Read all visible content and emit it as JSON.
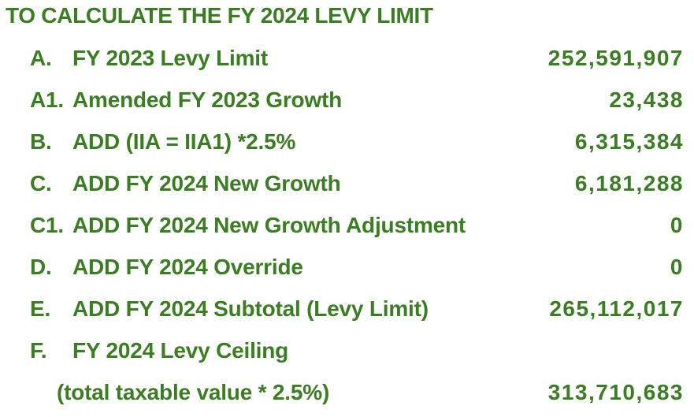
{
  "page": {
    "title": "TO CALCULATE THE FY 2024 LEVY LIMIT",
    "text_color": "#3B7D23",
    "background_color": "#FFFFFF"
  },
  "table": {
    "rows": [
      {
        "prefix": "A.",
        "label": "FY 2023 Levy Limit",
        "value": "252,591,907"
      },
      {
        "prefix": "A1.",
        "label": "Amended FY 2023 Growth",
        "value": "23,438"
      },
      {
        "prefix": "B.",
        "label": "ADD (IIA = IIA1) *2.5%",
        "value": "6,315,384"
      },
      {
        "prefix": "C.",
        "label": "ADD FY 2024 New Growth",
        "value": "6,181,288"
      },
      {
        "prefix": "C1.",
        "label": "ADD FY 2024 New Growth Adjustment",
        "value": "0"
      },
      {
        "prefix": "D.",
        "label": "ADD FY 2024 Override",
        "value": "0"
      },
      {
        "prefix": "E.",
        "label": "ADD FY 2024 Subtotal (Levy Limit)",
        "value": "265,112,017"
      },
      {
        "prefix": "F.",
        "label": "FY 2024 Levy Ceiling",
        "value": ""
      },
      {
        "prefix": "",
        "label": "(total taxable value * 2.5%)",
        "value": "313,710,683"
      }
    ]
  }
}
